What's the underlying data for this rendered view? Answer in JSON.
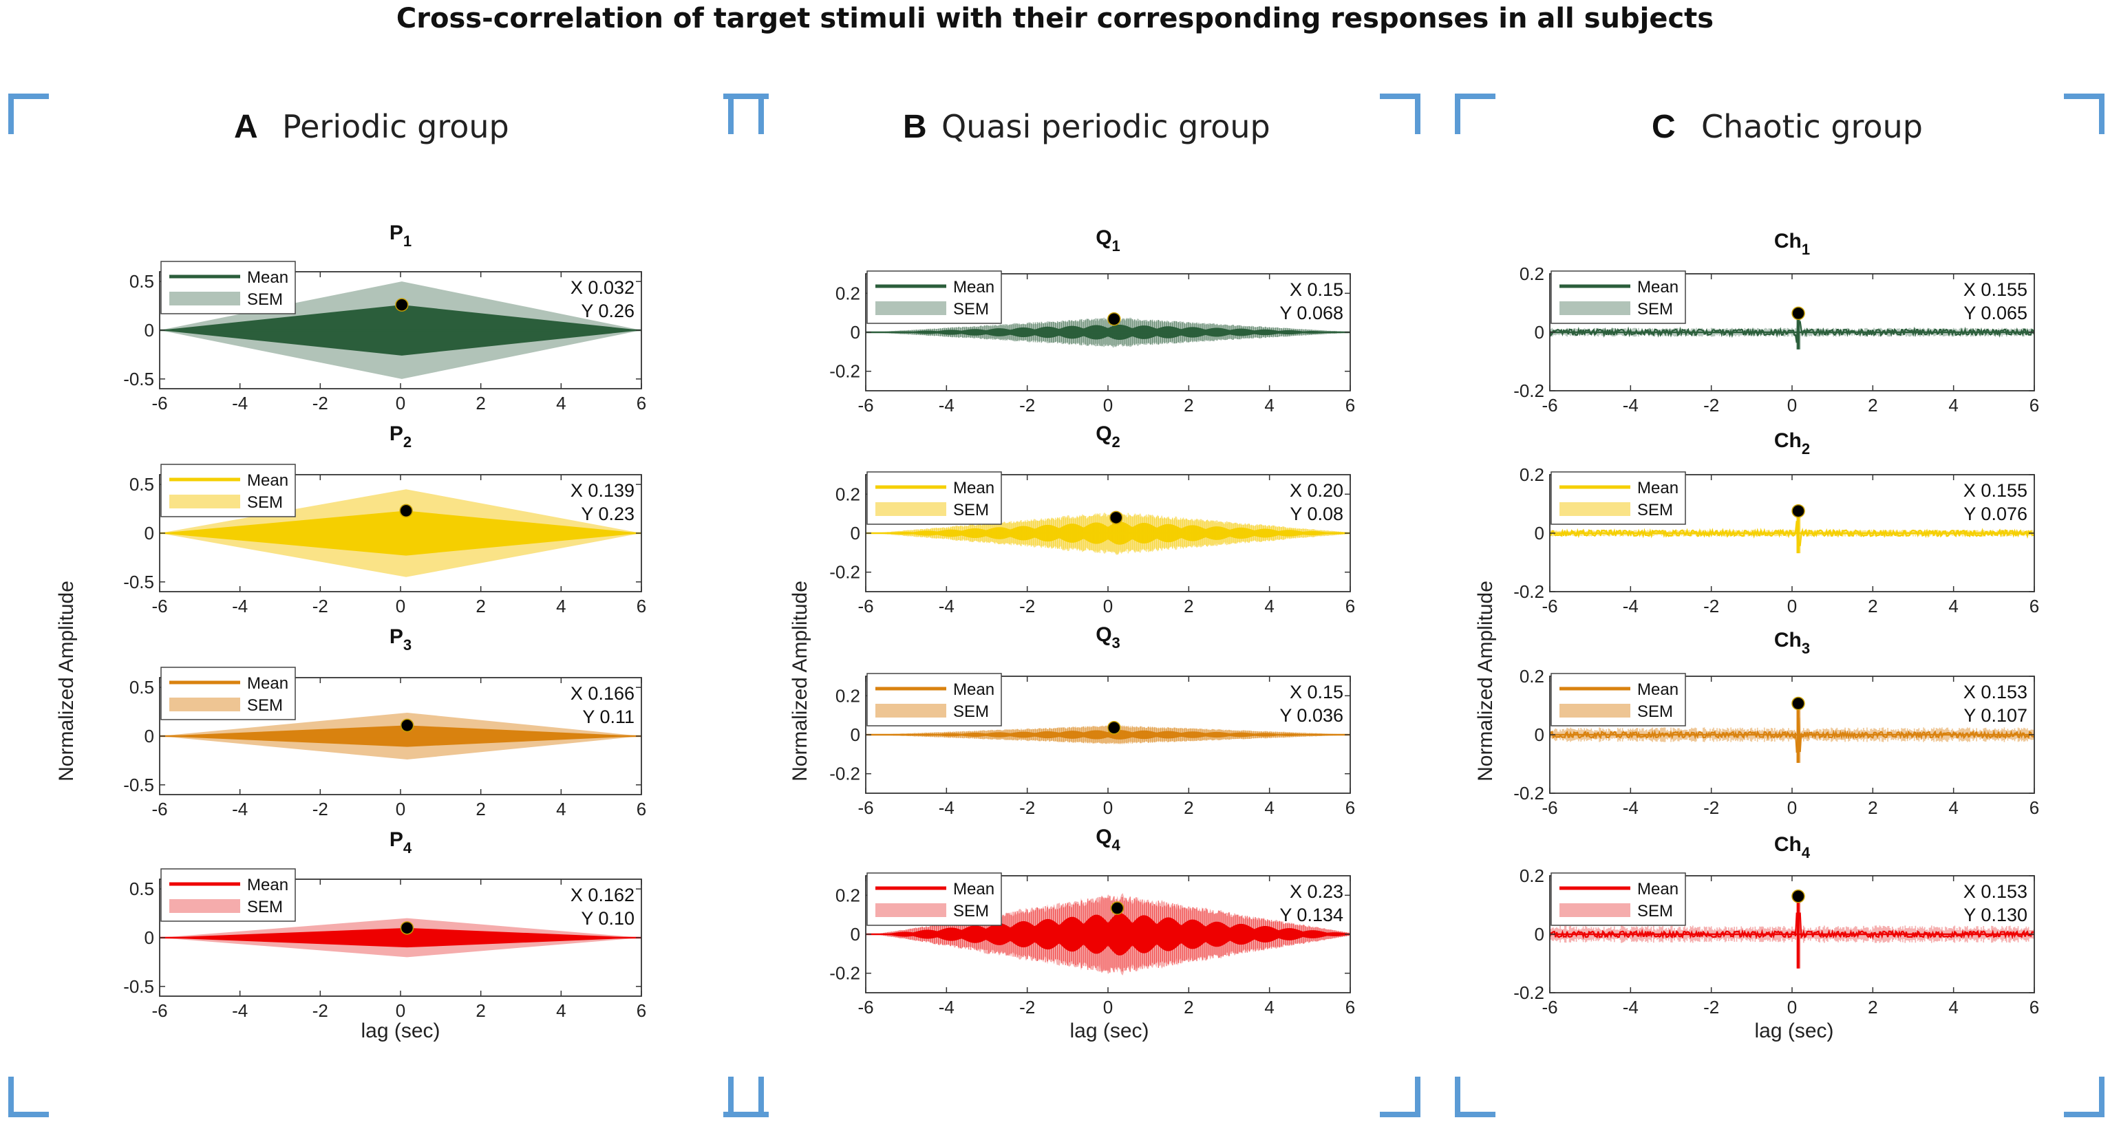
{
  "figure": {
    "title": "Cross-correlation of target stimuli with their corresponding responses in all subjects"
  },
  "colors": {
    "bracket": "#5b9bd5",
    "frame": "#333333",
    "marker": "#000000",
    "green": "#2b5e3b",
    "green_sem": "#a9bdb0",
    "yellow": "#f5cf00",
    "yellow_sem": "#f9e07a",
    "orange": "#d9820f",
    "orange_sem": "#ecbf87",
    "red": "#ee0000",
    "red_sem": "#f4a3a3"
  },
  "legend_labels": {
    "mean": "Mean",
    "sem": "SEM"
  },
  "groups": [
    {
      "letter": "A",
      "title": "Periodic group",
      "ylabel": "Normalized Amplitude",
      "xlabel": "lag (sec)"
    },
    {
      "letter": "B",
      "title": "Quasi periodic group",
      "ylabel": "Normalized Amplitude",
      "xlabel": "lag (sec)"
    },
    {
      "letter": "C",
      "title": "Chaotic group",
      "ylabel": "Normalized Amplitude",
      "xlabel": "lag (sec)"
    }
  ],
  "chart_data": [
    {
      "type": "area",
      "group": "A",
      "row": 0,
      "title_base": "P",
      "title_sub": "1",
      "color": "green",
      "style": "diamond",
      "xlim": [
        -6,
        6
      ],
      "ylim": [
        -0.6,
        0.6
      ],
      "yticks": [
        0.5,
        0,
        -0.5
      ],
      "xticks": [
        -6,
        -4,
        -2,
        0,
        2,
        4,
        6
      ],
      "mean_peak": 0.26,
      "sem_peak": 0.5,
      "peak_x": 0.032,
      "marker": {
        "x": 0.032,
        "y": 0.26
      },
      "readout": {
        "x": "X 0.032",
        "y": "Y 0.26"
      }
    },
    {
      "type": "area",
      "group": "A",
      "row": 1,
      "title_base": "P",
      "title_sub": "2",
      "color": "yellow",
      "style": "diamond",
      "xlim": [
        -6,
        6
      ],
      "ylim": [
        -0.6,
        0.6
      ],
      "yticks": [
        0.5,
        0,
        -0.5
      ],
      "xticks": [
        -6,
        -4,
        -2,
        0,
        2,
        4,
        6
      ],
      "mean_peak": 0.23,
      "sem_peak": 0.45,
      "peak_x": 0.139,
      "marker": {
        "x": 0.139,
        "y": 0.23
      },
      "readout": {
        "x": "X 0.139",
        "y": "Y 0.23"
      }
    },
    {
      "type": "area",
      "group": "A",
      "row": 2,
      "title_base": "P",
      "title_sub": "3",
      "color": "orange",
      "style": "diamond",
      "xlim": [
        -6,
        6
      ],
      "ylim": [
        -0.6,
        0.6
      ],
      "yticks": [
        0.5,
        0,
        -0.5
      ],
      "xticks": [
        -6,
        -4,
        -2,
        0,
        2,
        4,
        6
      ],
      "mean_peak": 0.11,
      "sem_peak": 0.24,
      "peak_x": 0.166,
      "marker": {
        "x": 0.166,
        "y": 0.11
      },
      "readout": {
        "x": "X 0.166",
        "y": "Y 0.11"
      }
    },
    {
      "type": "area",
      "group": "A",
      "row": 3,
      "title_base": "P",
      "title_sub": "4",
      "color": "red",
      "style": "diamond",
      "xlim": [
        -6,
        6
      ],
      "ylim": [
        -0.6,
        0.6
      ],
      "yticks": [
        0.5,
        0,
        -0.5
      ],
      "xticks": [
        -6,
        -4,
        -2,
        0,
        2,
        4,
        6
      ],
      "mean_peak": 0.1,
      "sem_peak": 0.2,
      "peak_x": 0.162,
      "marker": {
        "x": 0.162,
        "y": 0.1
      },
      "readout": {
        "x": "X 0.162",
        "y": "Y 0.10"
      }
    },
    {
      "type": "area",
      "group": "B",
      "row": 0,
      "title_base": "Q",
      "title_sub": "1",
      "color": "green",
      "style": "quasi",
      "xlim": [
        -6,
        6
      ],
      "ylim": [
        -0.3,
        0.3
      ],
      "yticks": [
        0.2,
        0,
        -0.2
      ],
      "xticks": [
        -6,
        -4,
        -2,
        0,
        2,
        4,
        6
      ],
      "mean_peak": 0.04,
      "sem_peak": 0.07,
      "peak_x": 0.15,
      "marker": {
        "x": 0.15,
        "y": 0.068
      },
      "readout": {
        "x": "X 0.15",
        "y": "Y 0.068"
      }
    },
    {
      "type": "area",
      "group": "B",
      "row": 1,
      "title_base": "Q",
      "title_sub": "2",
      "color": "yellow",
      "style": "quasi",
      "xlim": [
        -6,
        6
      ],
      "ylim": [
        -0.3,
        0.3
      ],
      "yticks": [
        0.2,
        0,
        -0.2
      ],
      "xticks": [
        -6,
        -4,
        -2,
        0,
        2,
        4,
        6
      ],
      "mean_peak": 0.06,
      "sem_peak": 0.1,
      "peak_x": 0.2,
      "marker": {
        "x": 0.2,
        "y": 0.08
      },
      "readout": {
        "x": "X 0.20",
        "y": "Y 0.08"
      }
    },
    {
      "type": "area",
      "group": "B",
      "row": 2,
      "title_base": "Q",
      "title_sub": "3",
      "color": "orange",
      "style": "quasi",
      "xlim": [
        -6,
        6
      ],
      "ylim": [
        -0.3,
        0.3
      ],
      "yticks": [
        0.2,
        0,
        -0.2
      ],
      "xticks": [
        -6,
        -4,
        -2,
        0,
        2,
        4,
        6
      ],
      "mean_peak": 0.025,
      "sem_peak": 0.045,
      "peak_x": 0.15,
      "marker": {
        "x": 0.15,
        "y": 0.036
      },
      "readout": {
        "x": "X 0.15",
        "y": "Y 0.036"
      }
    },
    {
      "type": "area",
      "group": "B",
      "row": 3,
      "title_base": "Q",
      "title_sub": "4",
      "color": "red",
      "style": "quasi",
      "xlim": [
        -6,
        6
      ],
      "ylim": [
        -0.3,
        0.3
      ],
      "yticks": [
        0.2,
        0,
        -0.2
      ],
      "xticks": [
        -6,
        -4,
        -2,
        0,
        2,
        4,
        6
      ],
      "mean_peak": 0.11,
      "sem_peak": 0.19,
      "peak_x": 0.23,
      "marker": {
        "x": 0.23,
        "y": 0.134
      },
      "readout": {
        "x": "X 0.23",
        "y": "Y 0.134"
      }
    },
    {
      "type": "area",
      "group": "C",
      "row": 0,
      "title_base": "Ch",
      "title_sub": "1",
      "color": "green",
      "style": "chaotic",
      "xlim": [
        -6,
        6
      ],
      "ylim": [
        -0.2,
        0.2
      ],
      "yticks": [
        0.2,
        0,
        -0.2
      ],
      "xticks": [
        -6,
        -4,
        -2,
        0,
        2,
        4,
        6
      ],
      "mean_peak": 0.065,
      "sem_peak": 0.015,
      "peak_x": 0.155,
      "marker": {
        "x": 0.155,
        "y": 0.065
      },
      "readout": {
        "x": "X 0.155",
        "y": "Y 0.065"
      }
    },
    {
      "type": "area",
      "group": "C",
      "row": 1,
      "title_base": "Ch",
      "title_sub": "2",
      "color": "yellow",
      "style": "chaotic",
      "xlim": [
        -6,
        6
      ],
      "ylim": [
        -0.2,
        0.2
      ],
      "yticks": [
        0.2,
        0,
        -0.2
      ],
      "xticks": [
        -6,
        -4,
        -2,
        0,
        2,
        4,
        6
      ],
      "mean_peak": 0.076,
      "sem_peak": 0.012,
      "peak_x": 0.155,
      "marker": {
        "x": 0.155,
        "y": 0.076
      },
      "readout": {
        "x": "X 0.155",
        "y": "Y 0.076"
      }
    },
    {
      "type": "area",
      "group": "C",
      "row": 2,
      "title_base": "Ch",
      "title_sub": "3",
      "color": "orange",
      "style": "chaotic",
      "xlim": [
        -6,
        6
      ],
      "ylim": [
        -0.2,
        0.2
      ],
      "yticks": [
        0.2,
        0,
        -0.2
      ],
      "xticks": [
        -6,
        -4,
        -2,
        0,
        2,
        4,
        6
      ],
      "mean_peak": 0.107,
      "sem_peak": 0.025,
      "peak_x": 0.153,
      "marker": {
        "x": 0.153,
        "y": 0.107
      },
      "readout": {
        "x": "X 0.153",
        "y": "Y 0.107"
      }
    },
    {
      "type": "area",
      "group": "C",
      "row": 3,
      "title_base": "Ch",
      "title_sub": "4",
      "color": "red",
      "style": "chaotic",
      "xlim": [
        -6,
        6
      ],
      "ylim": [
        -0.2,
        0.2
      ],
      "yticks": [
        0.2,
        0,
        -0.2
      ],
      "xticks": [
        -6,
        -4,
        -2,
        0,
        2,
        4,
        6
      ],
      "mean_peak": 0.13,
      "sem_peak": 0.03,
      "peak_x": 0.153,
      "marker": {
        "x": 0.153,
        "y": 0.13
      },
      "readout": {
        "x": "X 0.153",
        "y": "Y 0.130"
      }
    }
  ]
}
